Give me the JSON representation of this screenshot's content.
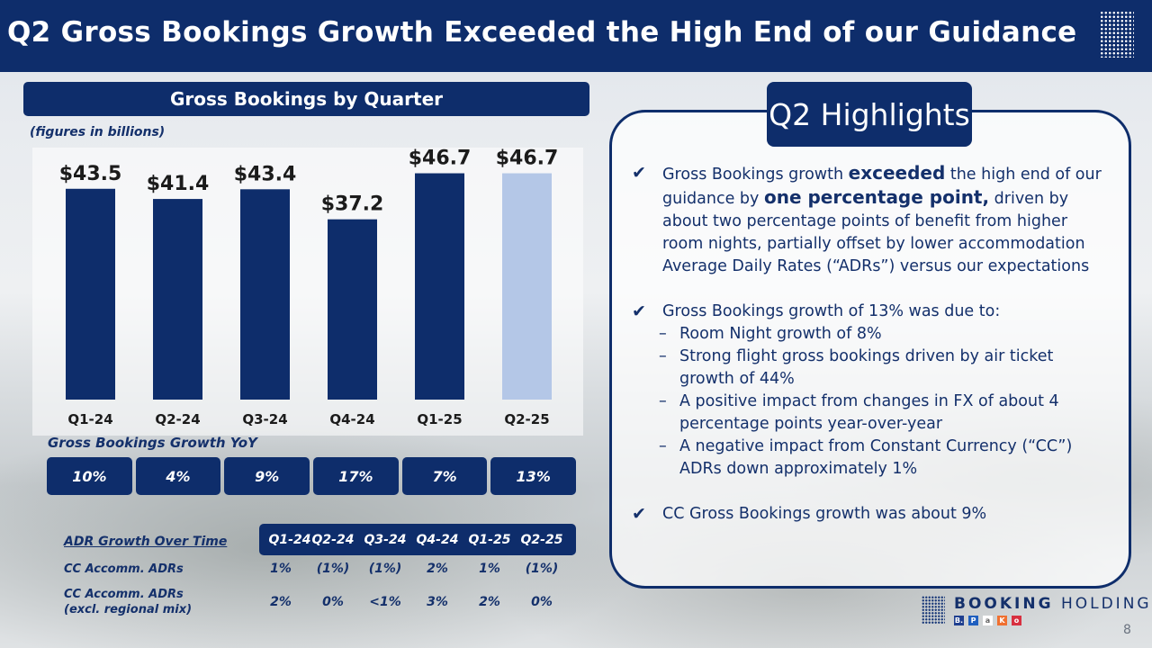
{
  "title": "Q2 Gross Bookings Growth Exceeded the High End of our Guidance",
  "panel_title": "Gross Bookings by Quarter",
  "figures_note": "(figures in billions)",
  "colors": {
    "navy": "#0e2d6b",
    "highlight_bar": "#b4c7e7"
  },
  "chart_data": {
    "type": "bar",
    "categories": [
      "Q1-24",
      "Q2-24",
      "Q3-24",
      "Q4-24",
      "Q1-25",
      "Q2-25"
    ],
    "values": [
      43.5,
      41.4,
      43.4,
      37.2,
      46.7,
      46.7
    ],
    "value_labels": [
      "$43.5",
      "$41.4",
      "$43.4",
      "$37.2",
      "$46.7",
      "$46.7"
    ],
    "highlighted_category": "Q2-25",
    "ylim": [
      0,
      52
    ]
  },
  "yoy": {
    "label": "Gross Bookings Growth YoY",
    "values": [
      "10%",
      "4%",
      "9%",
      "17%",
      "7%",
      "13%"
    ]
  },
  "adr": {
    "title": "ADR Growth Over Time",
    "headers": [
      "Q1-24",
      "Q2-24",
      "Q3-24",
      "Q4-24",
      "Q1-25",
      "Q2-25"
    ],
    "rows": [
      {
        "label": "CC Accomm. ADRs",
        "values": [
          "1%",
          "(1%)",
          "(1%)",
          "2%",
          "1%",
          "(1%)"
        ]
      },
      {
        "label_line1": "CC Accomm. ADRs",
        "label_line2": "(excl. regional mix)",
        "values": [
          "2%",
          "0%",
          "<1%",
          "3%",
          "2%",
          "0%"
        ]
      }
    ]
  },
  "highlights": {
    "tag": "Q2 Highlights",
    "b1_pre": "Gross Bookings growth ",
    "b1_em1": "exceeded",
    "b1_mid": " the high end of our guidance by ",
    "b1_em2": "one percentage point,",
    "b1_post": " driven by about two percentage points of benefit from higher room nights, partially offset by lower accommodation Average Daily Rates (“ADRs”) versus our expectations",
    "b2": "Gross Bookings growth of 13% was due to:",
    "b2_subs": [
      "Room Night growth of 8%",
      "Strong flight gross bookings driven by air ticket growth of 44%",
      "A positive impact from changes in FX of about 4 percentage points year-over-year",
      "A negative impact from Constant Currency (“CC”) ADRs down approximately 1%"
    ],
    "b3": "CC Gross Bookings growth was about 9%"
  },
  "logo": {
    "bold": "BOOKING",
    "light": "HOLDINGS"
  },
  "page_number": "8"
}
